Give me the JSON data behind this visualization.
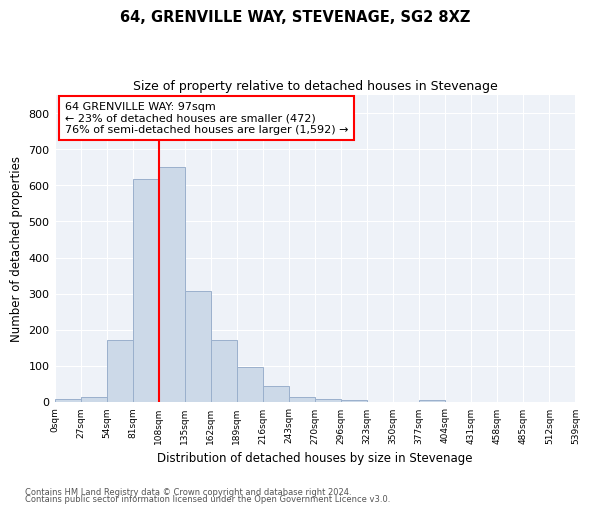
{
  "title1": "64, GRENVILLE WAY, STEVENAGE, SG2 8XZ",
  "title2": "Size of property relative to detached houses in Stevenage",
  "xlabel": "Distribution of detached houses by size in Stevenage",
  "ylabel": "Number of detached properties",
  "bar_color": "#ccd9e8",
  "bar_edge_color": "#9ab0cc",
  "bin_labels": [
    "0sqm",
    "27sqm",
    "54sqm",
    "81sqm",
    "108sqm",
    "135sqm",
    "162sqm",
    "189sqm",
    "216sqm",
    "243sqm",
    "270sqm",
    "296sqm",
    "323sqm",
    "350sqm",
    "377sqm",
    "404sqm",
    "431sqm",
    "458sqm",
    "485sqm",
    "512sqm",
    "539sqm"
  ],
  "bar_values": [
    8,
    13,
    172,
    617,
    652,
    307,
    172,
    97,
    43,
    15,
    9,
    6,
    0,
    0,
    5,
    0,
    0,
    0,
    0,
    0
  ],
  "vline_x": 108,
  "annotation_text": "64 GRENVILLE WAY: 97sqm\n← 23% of detached houses are smaller (472)\n76% of semi-detached houses are larger (1,592) →",
  "annotation_box_color": "white",
  "annotation_box_edge_color": "red",
  "vline_color": "red",
  "ylim": [
    0,
    850
  ],
  "yticks": [
    0,
    100,
    200,
    300,
    400,
    500,
    600,
    700,
    800
  ],
  "background_color": "#eef2f8",
  "footer_line1": "Contains HM Land Registry data © Crown copyright and database right 2024.",
  "footer_line2": "Contains public sector information licensed under the Open Government Licence v3.0.",
  "bin_width": 27
}
